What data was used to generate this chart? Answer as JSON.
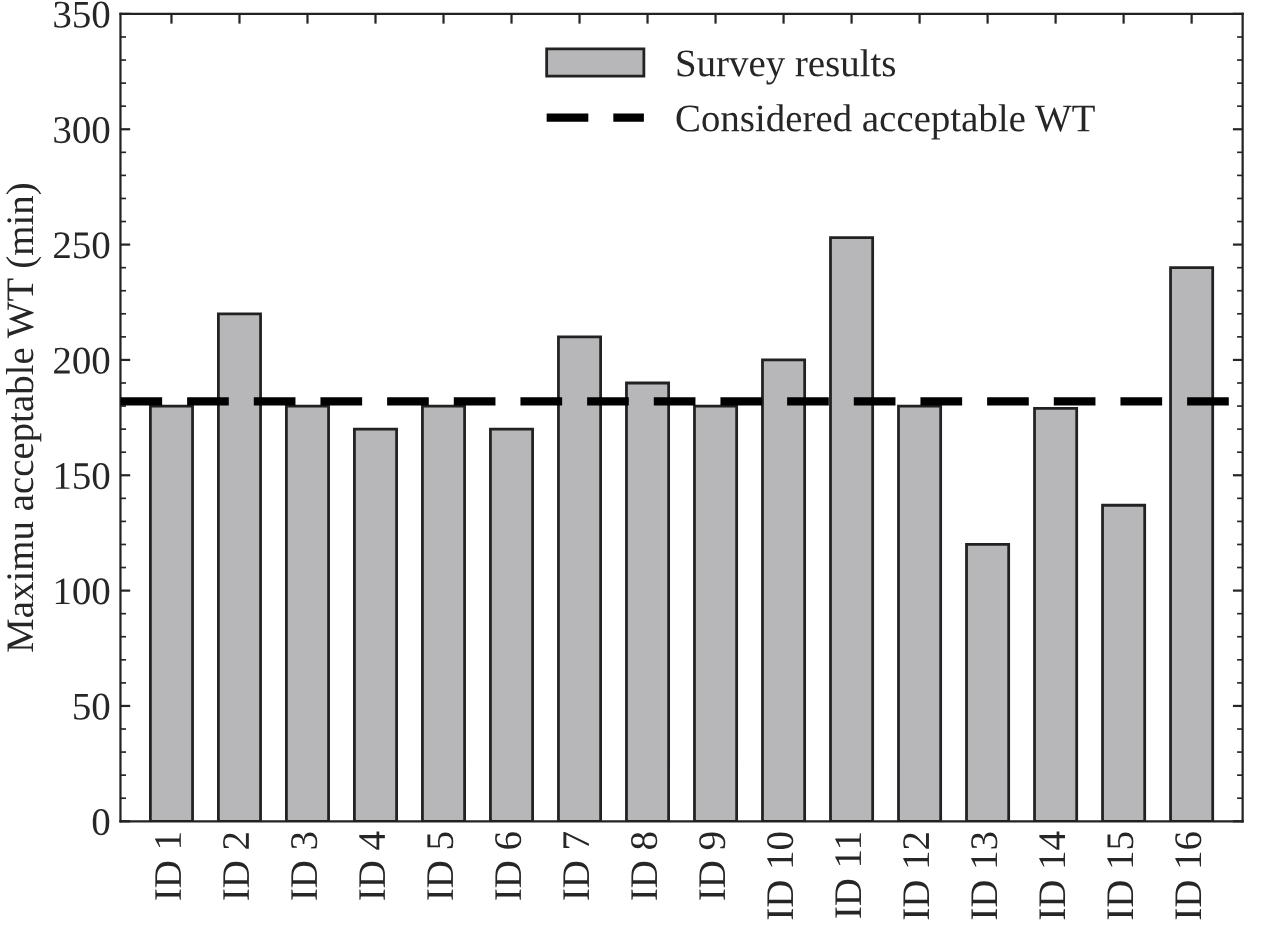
{
  "chart_data": {
    "type": "bar",
    "ylabel": "Maximu acceptable WT (min)",
    "categories": [
      "ID 1",
      "ID 2",
      "ID 3",
      "ID 4",
      "ID 5",
      "ID 6",
      "ID 7",
      "ID 8",
      "ID 9",
      "ID 10",
      "ID 11",
      "ID 12",
      "ID 13",
      "ID 14",
      "ID 15",
      "ID 16"
    ],
    "series": [
      {
        "name": "Survey results",
        "color": "#b7b7b9",
        "values": [
          180,
          220,
          180,
          170,
          180,
          170,
          210,
          190,
          180,
          200,
          253,
          180,
          120,
          179,
          137,
          240
        ]
      }
    ],
    "ref_lines": [
      {
        "axis": "y",
        "value": 182,
        "label": "Considered acceptable WT",
        "color": "#000000",
        "line_style": "dashed"
      }
    ],
    "ylim": [
      0,
      350
    ],
    "yticks": [
      0,
      50,
      100,
      150,
      200,
      250,
      300,
      350
    ],
    "grid": false,
    "legend": "top right"
  }
}
